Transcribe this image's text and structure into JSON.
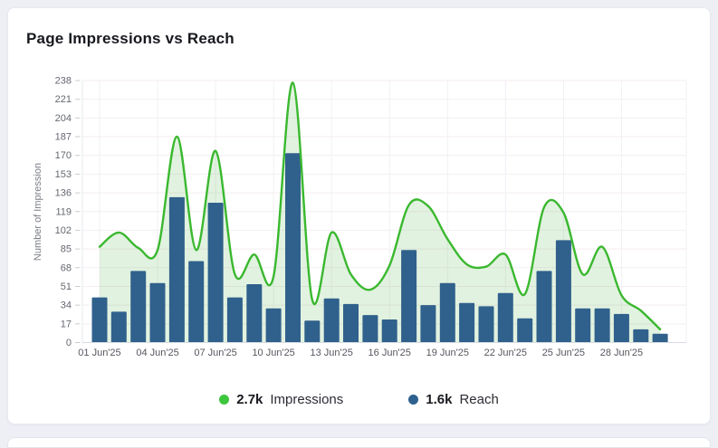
{
  "card": {
    "title": "Page Impressions vs Reach"
  },
  "legend": [
    {
      "value": "2.7k",
      "label": "Impressions",
      "color": "#3ec53e"
    },
    {
      "value": "1.6k",
      "label": "Reach",
      "color": "#2e618e"
    }
  ],
  "colors": {
    "page_bg": "#edeff5",
    "card_bg": "#ffffff",
    "grid_h": "#f5eef1",
    "grid_v": "#f1f0f5",
    "axis_line": "#d8dbe2",
    "left_axis_line": "#e6e8ee",
    "tick_dash": "#c9ccd2",
    "tick_text": "#65686f",
    "axis_title_text": "#7a7d85"
  },
  "chart_data": {
    "type": "bar+area",
    "title": "Page Impressions vs Reach",
    "xlabel": "",
    "ylabel": "Number of Impression",
    "ylim": [
      0,
      238
    ],
    "y_ticks": [
      0,
      17,
      34,
      51,
      68,
      85,
      102,
      119,
      136,
      153,
      170,
      187,
      204,
      221,
      238
    ],
    "n_points": 30,
    "x_tick_positions": [
      1,
      4,
      7,
      10,
      13,
      16,
      19,
      22,
      25,
      28
    ],
    "x_tick_labels": [
      "01 Jun'25",
      "04 Jun'25",
      "07 Jun'25",
      "10 Jun'25",
      "13 Jun'25",
      "16 Jun'25",
      "19 Jun'25",
      "22 Jun'25",
      "25 Jun'25",
      "28 Jun'25"
    ],
    "grid": true,
    "legend_position": "bottom",
    "series": [
      {
        "name": "Impressions",
        "type": "area",
        "legend_total": "2.7k",
        "color": "#3ab82f",
        "fill": "rgba(76,175,60,0.16)",
        "values": [
          87,
          100,
          86,
          84,
          187,
          84,
          174,
          62,
          80,
          60,
          236,
          39,
          100,
          62,
          48,
          70,
          125,
          124,
          94,
          71,
          69,
          80,
          44,
          123,
          118,
          62,
          87,
          43,
          29,
          12
        ]
      },
      {
        "name": "Reach",
        "type": "bar",
        "legend_total": "1.6k",
        "color": "#30618c",
        "values": [
          41,
          28,
          65,
          54,
          132,
          74,
          127,
          41,
          53,
          31,
          172,
          20,
          40,
          35,
          25,
          21,
          84,
          34,
          54,
          36,
          33,
          45,
          22,
          65,
          93,
          31,
          31,
          26,
          12,
          8
        ]
      }
    ]
  }
}
